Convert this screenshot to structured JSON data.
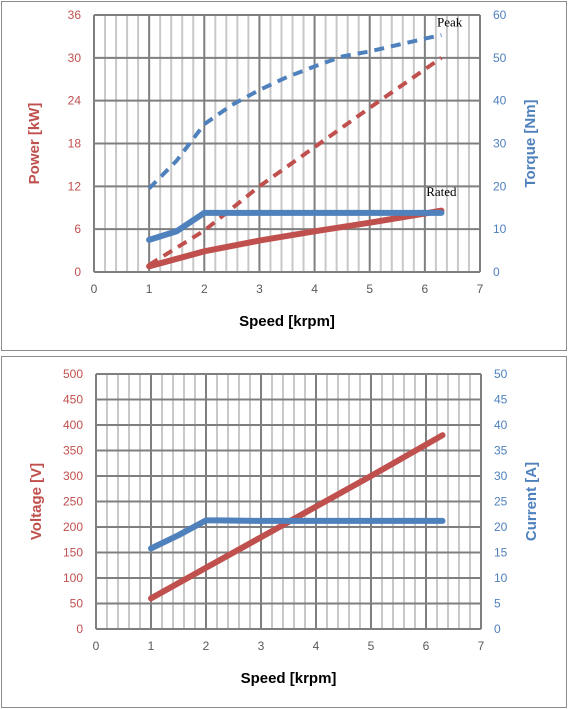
{
  "colors": {
    "power": "#c0504d",
    "torque": "#4f81bd",
    "grid_major": "#7f7f7f",
    "grid_minor": "#c8c8c8",
    "text": "#000000"
  },
  "chart_data": [
    {
      "type": "line",
      "grid": true,
      "xlabel": "Speed [krpm]",
      "ylabel_left": "Power [kW]",
      "ylabel_right": "Torque [Nm]",
      "xlim": [
        0,
        7
      ],
      "ylim_left": [
        0,
        36
      ],
      "ylim_right": [
        0,
        60
      ],
      "x_ticks": [
        "0",
        "1",
        "2",
        "3",
        "4",
        "5",
        "6",
        "7"
      ],
      "y_left_ticks": [
        "0",
        "6",
        "12",
        "18",
        "24",
        "30",
        "36"
      ],
      "y_right_ticks": [
        "0",
        "10",
        "20",
        "30",
        "40",
        "50",
        "60"
      ],
      "annotations": [
        {
          "text": "Peak",
          "x": 6.45,
          "y_right": 57.3
        },
        {
          "text": "Rated",
          "x": 6.3,
          "y_right": 17.7
        }
      ],
      "series": [
        {
          "axis": "left",
          "color": "#c0504d",
          "style": "dashed",
          "x": [
            1,
            2,
            3,
            4,
            5,
            6.3
          ],
          "values": [
            1.0,
            5.8,
            12.0,
            17.5,
            23.0,
            30.0
          ]
        },
        {
          "axis": "left",
          "color": "#c0504d",
          "style": "solid",
          "x": [
            1,
            2,
            3,
            4,
            5,
            6,
            6.3
          ],
          "values": [
            0.8,
            2.9,
            4.4,
            5.7,
            6.9,
            8.2,
            8.6
          ]
        },
        {
          "axis": "right",
          "color": "#4f81bd",
          "style": "dashed",
          "x": [
            1,
            1.5,
            2,
            2.5,
            3,
            3.5,
            4,
            4.5,
            5,
            5.5,
            6,
            6.3
          ],
          "values": [
            19.5,
            26,
            34.5,
            39,
            42.5,
            45.5,
            48,
            50.3,
            51.5,
            53,
            54.5,
            55.3
          ]
        },
        {
          "axis": "right",
          "color": "#4f81bd",
          "style": "solid",
          "x": [
            1,
            1.5,
            2,
            3,
            4,
            5,
            6,
            6.3
          ],
          "values": [
            7.5,
            9.5,
            13.8,
            13.8,
            13.8,
            13.8,
            13.8,
            13.8
          ]
        }
      ]
    },
    {
      "type": "line",
      "grid": true,
      "xlabel": "Speed [krpm]",
      "ylabel_left": "Voltage [V]",
      "ylabel_right": "Current [A]",
      "xlim": [
        0,
        7
      ],
      "ylim_left": [
        0,
        500
      ],
      "ylim_right": [
        0,
        50
      ],
      "x_ticks": [
        "0",
        "1",
        "2",
        "3",
        "4",
        "5",
        "6",
        "7"
      ],
      "y_left_ticks": [
        "0",
        "50",
        "100",
        "150",
        "200",
        "250",
        "300",
        "350",
        "400",
        "450",
        "500"
      ],
      "y_right_ticks": [
        "0",
        "5",
        "10",
        "15",
        "20",
        "25",
        "30",
        "35",
        "40",
        "45",
        "50"
      ],
      "series": [
        {
          "axis": "left",
          "color": "#c0504d",
          "style": "solid",
          "x": [
            1,
            2,
            3,
            4,
            5,
            6.3
          ],
          "values": [
            60,
            120,
            180,
            240,
            300,
            380
          ]
        },
        {
          "axis": "right",
          "color": "#4f81bd",
          "style": "solid",
          "x": [
            1,
            1.5,
            2,
            2.2,
            3,
            4,
            5,
            6,
            6.3
          ],
          "values": [
            15.8,
            18.4,
            21.3,
            21.3,
            21.2,
            21.2,
            21.2,
            21.2,
            21.2
          ]
        }
      ]
    }
  ]
}
